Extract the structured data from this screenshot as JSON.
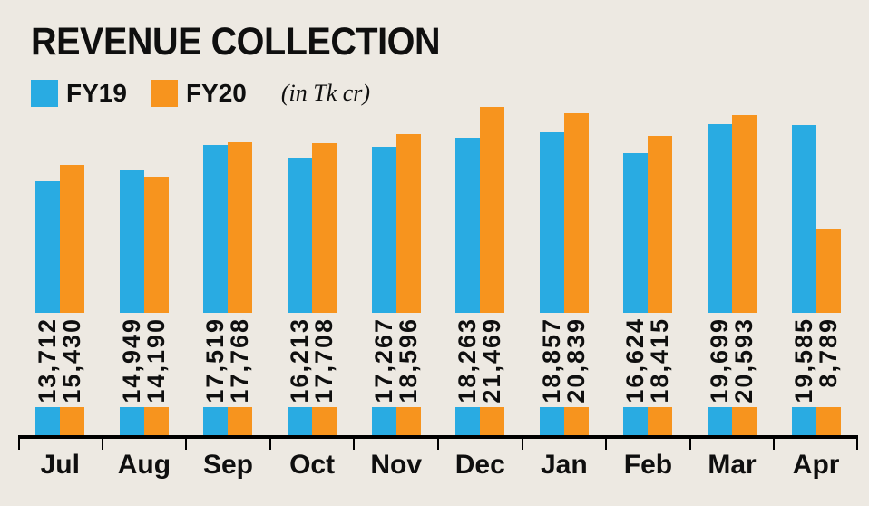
{
  "title": "REVENUE COLLECTION",
  "unit_note": "(in Tk cr)",
  "colors": {
    "background": "#EDE9E2",
    "fy19": "#29ABE2",
    "fy20": "#F7941E",
    "text": "#0F0F0F",
    "axis": "#000000"
  },
  "legend": [
    {
      "label": "FY19",
      "color": "#29ABE2"
    },
    {
      "label": "FY20",
      "color": "#F7941E"
    }
  ],
  "chart_data": {
    "type": "bar",
    "title": "REVENUE COLLECTION",
    "unit": "in Tk cr",
    "legend_position": "top-left",
    "grid": false,
    "categories": [
      "Jul",
      "Aug",
      "Sep",
      "Oct",
      "Nov",
      "Dec",
      "Jan",
      "Feb",
      "Mar",
      "Apr"
    ],
    "series": [
      {
        "name": "FY19",
        "color": "#29ABE2",
        "values": [
          13712,
          14949,
          17519,
          16213,
          17267,
          18263,
          18857,
          16624,
          19699,
          19585
        ]
      },
      {
        "name": "FY20",
        "color": "#F7941E",
        "values": [
          15430,
          14190,
          17768,
          17708,
          18596,
          21469,
          20839,
          18415,
          20593,
          8789
        ]
      }
    ],
    "value_label_rotation": -90,
    "value_label_format": "thousands-comma",
    "ylim": [
      0,
      21469
    ]
  }
}
